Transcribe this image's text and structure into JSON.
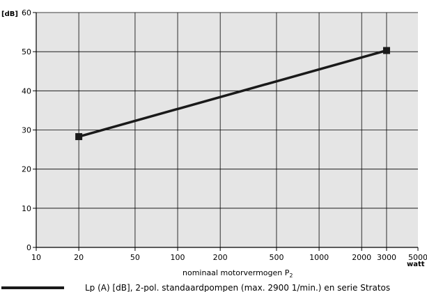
{
  "chart_data": {
    "type": "line",
    "x_scale": "log",
    "xlim": [
      10,
      5000
    ],
    "ylim": [
      0,
      60
    ],
    "grid": true,
    "xticks": [
      10,
      20,
      50,
      100,
      200,
      500,
      1000,
      2000,
      3000,
      5000
    ],
    "xtick_labels": [
      "10",
      "20",
      "50",
      "100",
      "200",
      "500",
      "1000",
      "2000",
      "3000",
      "5000"
    ],
    "yticks": [
      0,
      10,
      20,
      30,
      40,
      50,
      60
    ],
    "ytick_labels": [
      "0",
      "10",
      "20",
      "30",
      "40",
      "50",
      "60"
    ],
    "y_unit": "[dB]",
    "x_unit": "watt",
    "xlabel_main": "nominaal motorvermogen P",
    "xlabel_sub": "2",
    "legend_placement": "bottom",
    "series": [
      {
        "name": "Lp (A) [dB], 2-pol. standaardpompen (max. 2900 1/min.) en serie Stratos",
        "x": [
          20,
          3000
        ],
        "y": [
          28.3,
          50.3
        ]
      }
    ],
    "colors": {
      "plot_bg": "#e5e5e5",
      "line": "#1a1a1a",
      "grid": "#000000"
    }
  }
}
